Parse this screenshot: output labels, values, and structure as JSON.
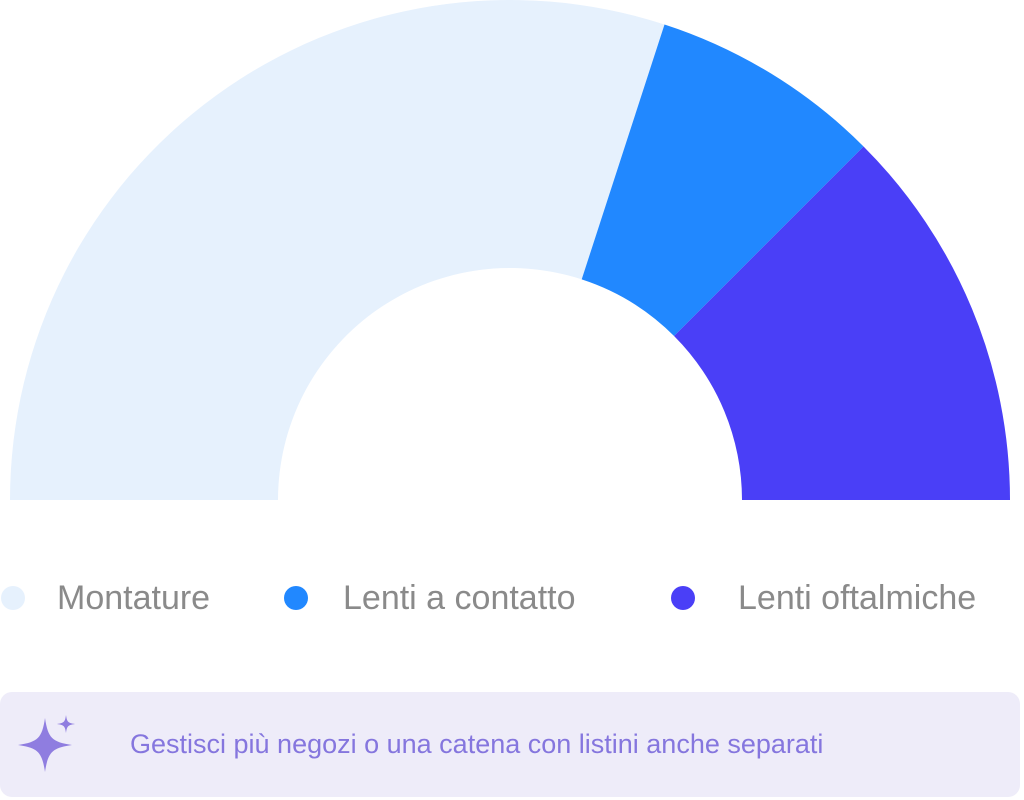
{
  "chart_data": {
    "type": "half-donut",
    "categories": [
      "Montature",
      "Lenti a contatto",
      "Lenti oftalmiche"
    ],
    "values": [
      60,
      15,
      25
    ],
    "colors": [
      "#e6f1fd",
      "#2188ff",
      "#4a3ff7"
    ]
  },
  "banner": {
    "text": "Gestisci più negozi o una catena con listini anche separati"
  }
}
